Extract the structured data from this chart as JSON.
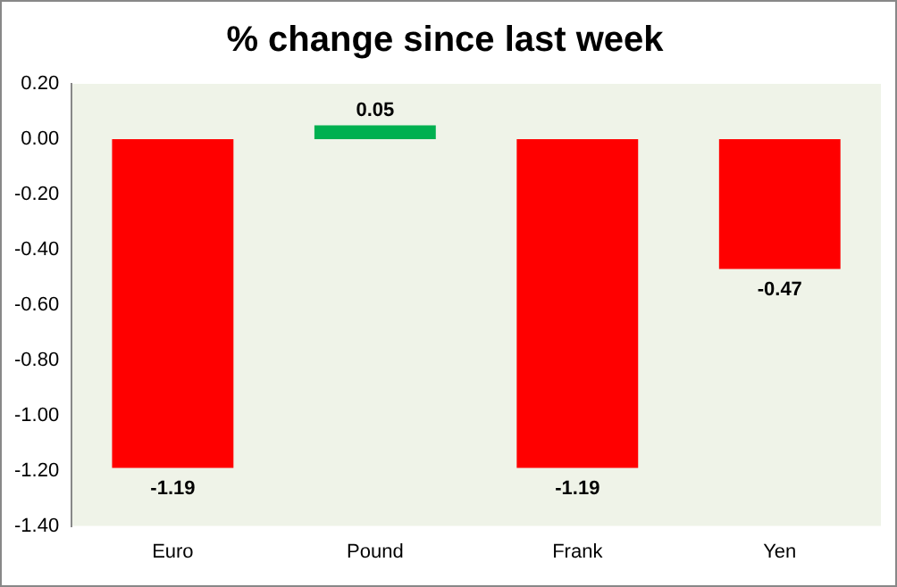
{
  "chart_data": {
    "type": "bar",
    "title": "% change since last week",
    "categories": [
      "Euro",
      "Pound",
      "Frank",
      "Yen"
    ],
    "values": [
      -1.19,
      0.05,
      -1.19,
      -0.47
    ],
    "colors": [
      "#ff0000",
      "#00b050",
      "#ff0000",
      "#ff0000"
    ],
    "ylim": [
      -1.4,
      0.2
    ],
    "yticks": [
      {
        "value": 0.2,
        "label": "0.20"
      },
      {
        "value": 0,
        "label": "0.00"
      },
      {
        "value": -0.2,
        "label": "-0.20"
      },
      {
        "value": -0.4,
        "label": "-0.40"
      },
      {
        "value": -0.6,
        "label": "-0.60"
      },
      {
        "value": -0.8,
        "label": "-0.80"
      },
      {
        "value": -1,
        "label": "-1.00"
      },
      {
        "value": -1.2,
        "label": "-1.20"
      },
      {
        "value": -1.4,
        "label": "-1.40"
      }
    ],
    "data_labels": true,
    "grid": false,
    "legend": false
  }
}
